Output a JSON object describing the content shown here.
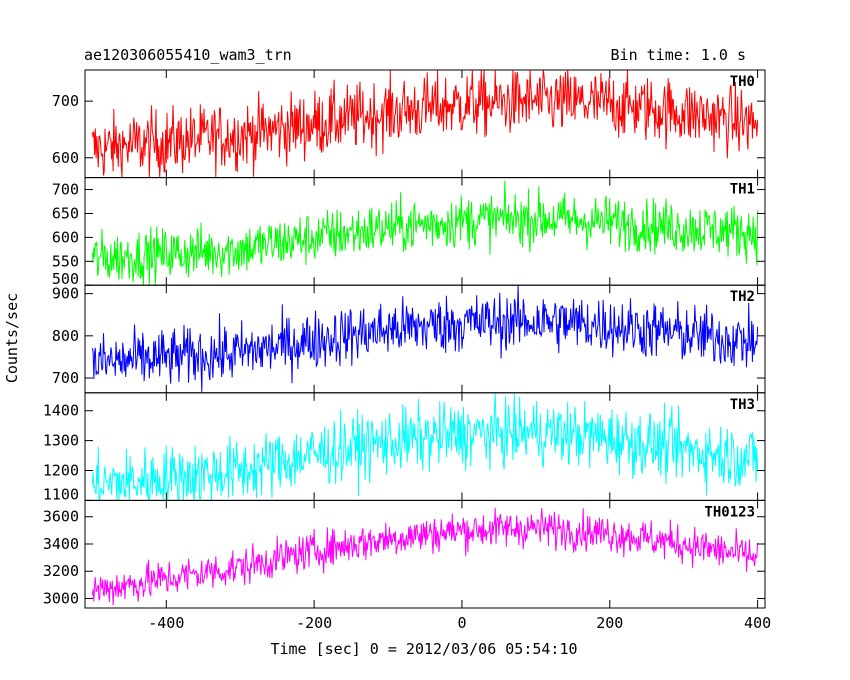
{
  "header": {
    "title_left": "ae120306055410_wam3_trn",
    "title_right": "Bin time: 1.0 s"
  },
  "chart_data": {
    "type": "line",
    "xlabel": "Time [sec] 0 = 2012/03/06 05:54:10",
    "ylabel": "Counts/sec",
    "xlim": [
      -510,
      410
    ],
    "x_ticks": [
      -400,
      -200,
      0,
      200,
      400
    ],
    "x_range": [
      -500,
      400
    ],
    "bin_time": 1.0,
    "panels": [
      {
        "name": "TH0",
        "color": "#ff0000",
        "ylim": [
          565,
          755
        ],
        "y_ticks": [
          600,
          700
        ],
        "trend_x": [
          -500,
          -300,
          -200,
          -100,
          0,
          100,
          200,
          300,
          400
        ],
        "trend_y": [
          615,
          640,
          660,
          680,
          695,
          700,
          695,
          680,
          660
        ],
        "noise": 30
      },
      {
        "name": "TH1",
        "color": "#00ff00",
        "ylim": [
          500,
          725
        ],
        "y_ticks": [
          500,
          550,
          600,
          650,
          700
        ],
        "trend_x": [
          -500,
          -300,
          -200,
          -100,
          0,
          100,
          200,
          300,
          400
        ],
        "trend_y": [
          555,
          575,
          600,
          620,
          635,
          640,
          632,
          620,
          610
        ],
        "noise": 28
      },
      {
        "name": "TH2",
        "color": "#0000ff",
        "ylim": [
          665,
          920
        ],
        "y_ticks": [
          700,
          800,
          900
        ],
        "trend_x": [
          -500,
          -300,
          -200,
          -100,
          0,
          100,
          200,
          300,
          400
        ],
        "trend_y": [
          735,
          760,
          790,
          815,
          830,
          835,
          825,
          805,
          785
        ],
        "noise": 35
      },
      {
        "name": "TH3",
        "color": "#00ffff",
        "ylim": [
          1100,
          1460
        ],
        "y_ticks": [
          1100,
          1200,
          1300,
          1400
        ],
        "trend_x": [
          -500,
          -300,
          -200,
          -100,
          0,
          100,
          200,
          300,
          400
        ],
        "trend_y": [
          1150,
          1200,
          1255,
          1295,
          1320,
          1330,
          1310,
          1270,
          1240
        ],
        "noise": 55
      },
      {
        "name": "TH0123",
        "color": "#ff00ff",
        "ylim": [
          2930,
          3720
        ],
        "y_ticks": [
          3000,
          3200,
          3400,
          3600
        ],
        "trend_x": [
          -500,
          -300,
          -200,
          -100,
          0,
          100,
          200,
          300,
          400
        ],
        "trend_y": [
          3060,
          3230,
          3350,
          3440,
          3500,
          3520,
          3480,
          3400,
          3300
        ],
        "noise": 70
      }
    ]
  }
}
